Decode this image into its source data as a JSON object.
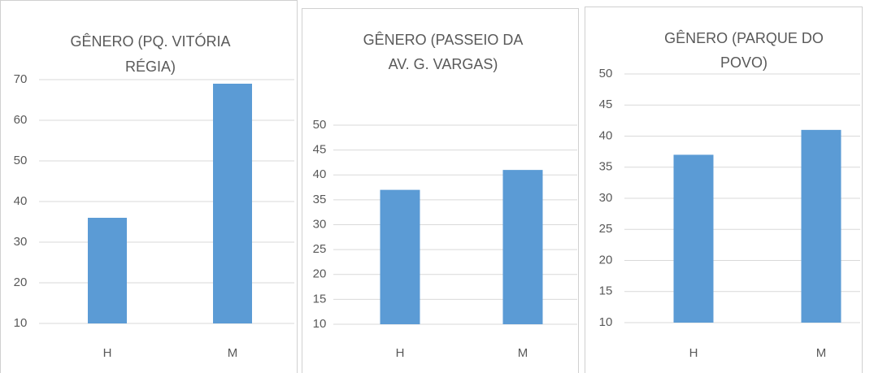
{
  "chart_data": [
    {
      "type": "bar",
      "title": [
        "GÊNERO  (PQ. VITÓRIA",
        "RÉGIA)"
      ],
      "categories": [
        "H",
        "M"
      ],
      "values": [
        36,
        69
      ],
      "color": "#5b9bd5",
      "ylim": [
        10,
        70
      ],
      "yticks": [
        10,
        20,
        30,
        40,
        50,
        60,
        70
      ],
      "grid": true
    },
    {
      "type": "bar",
      "title": [
        "GÊNERO   (PASSEIO DA",
        "AV. G. VARGAS)"
      ],
      "categories": [
        "H",
        "M"
      ],
      "values": [
        37,
        41
      ],
      "color": "#5b9bd5",
      "ylim": [
        10,
        50
      ],
      "yticks": [
        10,
        15,
        20,
        25,
        30,
        35,
        40,
        45,
        50
      ],
      "grid": true
    },
    {
      "type": "bar",
      "title": [
        "GÊNERO  (PARQUE DO",
        "POVO)"
      ],
      "categories": [
        "H",
        "M"
      ],
      "values": [
        37,
        41
      ],
      "color": "#5b9bd5",
      "ylim": [
        10,
        50
      ],
      "yticks": [
        10,
        15,
        20,
        25,
        30,
        35,
        40,
        45,
        50
      ],
      "grid": true
    }
  ]
}
